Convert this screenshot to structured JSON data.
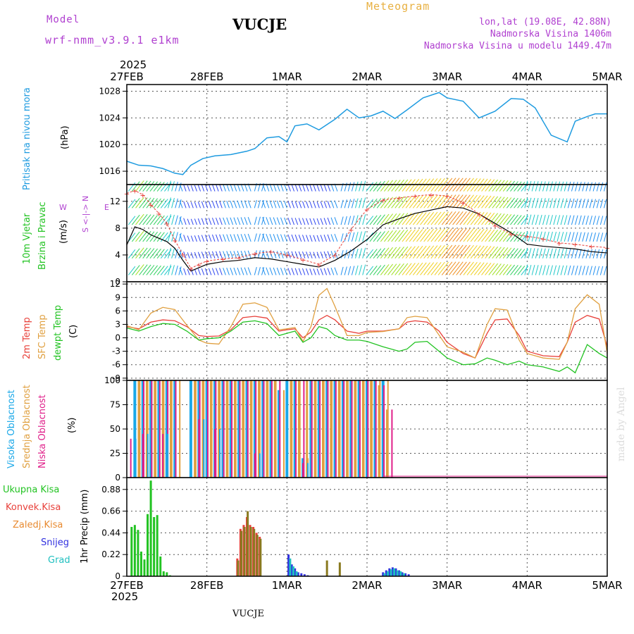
{
  "header": {
    "model_label": "Model",
    "model_name": "wrf-nmm_v3.9.1 e1km",
    "station": "VUCJE",
    "product": "Meteogram",
    "lonlat": "lon,lat (19.08E, 42.88N)",
    "altitude": "Nadmorska Visina 1406m",
    "model_altitude": "Nadmorska Visina u modelu 1449.47m",
    "footer_station": "VUCJE",
    "credit": "made by Angel"
  },
  "colors": {
    "pressure": "#1e9be0",
    "temp2m": "#e8403a",
    "sfc": "#e0a040",
    "dewpt": "#22c322",
    "high_cloud": "#1aa8e8",
    "mid_cloud": "#e0a040",
    "low_cloud": "#e0208a",
    "total_precip": "#22c322",
    "conv": "#e8403a",
    "frozen": "#e88a30",
    "snow": "#3030e0",
    "hail": "#20c0c0",
    "header_purple": "#b040d0",
    "header_orange": "#e8b040"
  },
  "time_axis": {
    "year": "2025",
    "labels": [
      "27FEB",
      "28FEB",
      "1MAR",
      "2MAR",
      "3MAR",
      "4MAR",
      "5MAR"
    ]
  },
  "panel_labels": {
    "pressure": {
      "name": "Pritisak na nivou mora",
      "unit": "(hPa)"
    },
    "wind": {
      "line1": "10m Vjetar",
      "line2": "Brzina i Pravac",
      "unit": "(m/s)",
      "compass_ns": "S <-|-> N",
      "compass_w": "W",
      "compass_e": "E"
    },
    "temp": {
      "t2m": "2m Temp",
      "sfc": "SFC Temp",
      "dew": "dewpt Temp",
      "unit": "(C)"
    },
    "cloud": {
      "high": "Visoka Oblacnost",
      "mid": "Srednja Oblacnost",
      "low": "Niska Oblacnost",
      "unit": "(%)"
    },
    "precip": {
      "total": "Ukupna Kisa",
      "conv": "Konvek.Kisa",
      "frozen": "Zaledj.Kisa",
      "snow": "Snijeg",
      "hail": "Grad",
      "axis": "1hr Precip (mm)"
    }
  },
  "chart_data": [
    {
      "type": "line",
      "name": "pressure",
      "x_unit": "days since 27FEB 00UTC",
      "ylim": [
        1014,
        1029
      ],
      "yticks": [
        "1016",
        "1020",
        "1024",
        "1028"
      ],
      "series": [
        {
          "name": "Pritisak na nivou mora",
          "x": [
            0,
            0.15,
            0.3,
            0.45,
            0.6,
            0.7,
            0.8,
            0.95,
            1.1,
            1.3,
            1.5,
            1.6,
            1.75,
            1.9,
            2.0,
            2.1,
            2.25,
            2.4,
            2.6,
            2.75,
            2.9,
            3.05,
            3.2,
            3.35,
            3.5,
            3.7,
            3.9,
            4.0,
            4.2,
            4.4,
            4.6,
            4.8,
            4.95,
            5.1,
            5.3,
            5.5,
            5.6,
            5.75,
            5.85,
            6.0
          ],
          "values": [
            1017.5,
            1016.9,
            1016.8,
            1016.4,
            1015.7,
            1015.5,
            1016.9,
            1017.9,
            1018.3,
            1018.5,
            1019.0,
            1019.4,
            1021.0,
            1021.2,
            1020.4,
            1022.8,
            1023.1,
            1022.2,
            1023.8,
            1025.3,
            1024.0,
            1024.3,
            1025.0,
            1023.9,
            1025.2,
            1027.0,
            1027.8,
            1027.0,
            1026.5,
            1024.0,
            1025.0,
            1026.9,
            1026.8,
            1025.5,
            1021.4,
            1020.4,
            1023.5,
            1024.2,
            1024.6,
            1024.6
          ]
        }
      ]
    },
    {
      "type": "line",
      "name": "wind",
      "x_unit": "days since 27FEB 00UTC",
      "ylim": [
        0,
        14.5
      ],
      "yticks": [
        "0",
        "4",
        "8",
        "12"
      ],
      "series": [
        {
          "name": "speed",
          "x": [
            0,
            0.1,
            0.2,
            0.3,
            0.4,
            0.5,
            0.6,
            0.7,
            0.8,
            0.9,
            1.0,
            1.2,
            1.4,
            1.6,
            1.8,
            2.0,
            2.2,
            2.4,
            2.6,
            2.8,
            3.0,
            3.2,
            3.4,
            3.6,
            3.8,
            4.0,
            4.2,
            4.4,
            4.6,
            4.8,
            5.0,
            5.2,
            5.4,
            5.6,
            5.8,
            6.0
          ],
          "values": [
            5.5,
            8.2,
            7.8,
            7.0,
            6.5,
            6.0,
            5.0,
            3.2,
            1.6,
            2.1,
            2.6,
            3.0,
            3.2,
            3.6,
            3.4,
            3.0,
            2.6,
            2.2,
            3.2,
            4.6,
            6.3,
            8.5,
            9.4,
            10.2,
            10.7,
            11.2,
            11.0,
            10.1,
            8.7,
            7.3,
            5.6,
            5.3,
            5.1,
            4.9,
            4.5,
            4.3
          ]
        },
        {
          "name": "gust",
          "x": [
            0,
            0.1,
            0.2,
            0.3,
            0.4,
            0.5,
            0.6,
            0.7,
            0.8,
            0.9,
            1.0,
            1.2,
            1.4,
            1.6,
            1.8,
            2.0,
            2.2,
            2.4,
            2.6,
            2.8,
            3.0,
            3.2,
            3.4,
            3.6,
            3.8,
            4.0,
            4.2,
            4.4,
            4.6,
            4.8,
            5.0,
            5.2,
            5.4,
            5.6,
            5.8,
            6.0
          ],
          "values": [
            13.2,
            13.6,
            13.0,
            11.5,
            10.2,
            8.7,
            6.2,
            4.1,
            2.0,
            2.6,
            3.1,
            3.4,
            3.6,
            4.2,
            4.5,
            4.0,
            3.3,
            2.6,
            4.0,
            7.8,
            10.8,
            12.2,
            12.5,
            12.8,
            13.0,
            12.8,
            11.8,
            10.1,
            8.4,
            7.1,
            6.8,
            6.4,
            5.8,
            5.6,
            5.3,
            5.1
          ]
        }
      ]
    },
    {
      "type": "line",
      "name": "temperature",
      "x_unit": "days since 27FEB 00UTC",
      "ylim": [
        -9.5,
        12.5
      ],
      "yticks": [
        "-9",
        "-6",
        "-3",
        "0",
        "3",
        "6",
        "9",
        "12"
      ],
      "series": [
        {
          "name": "2m Temp",
          "x": [
            0,
            0.15,
            0.3,
            0.45,
            0.6,
            0.75,
            0.9,
            1.0,
            1.15,
            1.3,
            1.45,
            1.6,
            1.75,
            1.9,
            2.0,
            2.1,
            2.2,
            2.3,
            2.4,
            2.5,
            2.6,
            2.75,
            2.9,
            3.0,
            3.2,
            3.4,
            3.5,
            3.6,
            3.75,
            3.9,
            4.0,
            4.2,
            4.35,
            4.5,
            4.6,
            4.75,
            4.9,
            5.0,
            5.2,
            5.4,
            5.5,
            5.6,
            5.75,
            5.9,
            6.0
          ],
          "values": [
            2.5,
            2.0,
            3.5,
            4.0,
            3.8,
            2.5,
            0.5,
            0.3,
            0.4,
            1.8,
            4.5,
            4.8,
            4.4,
            1.5,
            1.8,
            2.0,
            0.0,
            1.3,
            4.0,
            5.0,
            4.0,
            1.5,
            1.0,
            1.5,
            1.5,
            2.0,
            3.5,
            3.8,
            3.5,
            1.5,
            -1.0,
            -3.5,
            -4.5,
            1.0,
            4.0,
            4.2,
            0.5,
            -3.0,
            -4.0,
            -4.2,
            -1.0,
            3.5,
            5.0,
            4.2,
            -2.0
          ]
        },
        {
          "name": "SFC Temp",
          "x": [
            0,
            0.15,
            0.3,
            0.45,
            0.6,
            0.75,
            0.9,
            1.0,
            1.15,
            1.3,
            1.45,
            1.6,
            1.75,
            1.9,
            2.0,
            2.1,
            2.2,
            2.3,
            2.4,
            2.5,
            2.6,
            2.75,
            2.9,
            3.0,
            3.2,
            3.4,
            3.5,
            3.6,
            3.75,
            3.9,
            4.0,
            4.2,
            4.35,
            4.5,
            4.6,
            4.75,
            4.9,
            5.0,
            5.2,
            5.4,
            5.5,
            5.6,
            5.75,
            5.9,
            6.0
          ],
          "values": [
            2.7,
            1.8,
            5.5,
            6.8,
            6.3,
            2.8,
            -0.5,
            -1.2,
            -1.4,
            2.5,
            7.5,
            7.8,
            6.8,
            1.8,
            2.0,
            2.3,
            -0.8,
            2.5,
            9.5,
            11.0,
            7.0,
            0.5,
            0.5,
            1.2,
            1.4,
            2.0,
            4.5,
            4.8,
            4.5,
            0.6,
            -2.0,
            -3.2,
            -4.5,
            3.0,
            6.5,
            6.2,
            -0.5,
            -3.5,
            -4.5,
            -4.8,
            -1.0,
            6.5,
            9.6,
            7.5,
            -3.5
          ]
        },
        {
          "name": "dewpt Temp",
          "x": [
            0,
            0.15,
            0.3,
            0.45,
            0.6,
            0.75,
            0.9,
            1.0,
            1.15,
            1.3,
            1.45,
            1.6,
            1.75,
            1.9,
            2.0,
            2.1,
            2.2,
            2.3,
            2.4,
            2.5,
            2.6,
            2.75,
            2.9,
            3.0,
            3.2,
            3.4,
            3.5,
            3.6,
            3.75,
            3.9,
            4.0,
            4.2,
            4.35,
            4.5,
            4.6,
            4.75,
            4.9,
            5.0,
            5.2,
            5.4,
            5.5,
            5.6,
            5.75,
            5.9,
            6.0
          ],
          "values": [
            2.2,
            1.5,
            2.5,
            3.2,
            3.0,
            1.5,
            -0.5,
            -0.2,
            0.0,
            1.5,
            3.5,
            3.8,
            3.2,
            0.5,
            1.0,
            1.5,
            -1.0,
            0.0,
            2.5,
            2.0,
            0.5,
            -0.5,
            -0.5,
            -0.8,
            -2.0,
            -3.0,
            -2.5,
            -1.0,
            -0.8,
            -3.0,
            -4.5,
            -6.0,
            -5.8,
            -4.5,
            -5.0,
            -6.0,
            -5.2,
            -6.0,
            -6.5,
            -7.5,
            -6.5,
            -7.8,
            -1.5,
            -3.5,
            -4.5
          ]
        }
      ]
    },
    {
      "type": "bar",
      "name": "cloud",
      "x_unit": "days since 27FEB 00UTC",
      "ylim": [
        0,
        100
      ],
      "yticks": [
        "0",
        "25",
        "50",
        "75",
        "100"
      ],
      "series": [
        {
          "name": "Visoka Oblacnost",
          "x": [
            0.1,
            0.2,
            0.3,
            0.4,
            0.5,
            0.6,
            0.8,
            0.9,
            1.0,
            1.1,
            1.2,
            1.3,
            1.4,
            1.5,
            1.6,
            1.7,
            1.8,
            1.9,
            2.0,
            2.1,
            2.2,
            2.3,
            2.4,
            2.5,
            2.6,
            2.7,
            2.8,
            2.9,
            3.0,
            3.1,
            3.2,
            3.3,
            3.4,
            3.5,
            3.6,
            3.7,
            3.8,
            3.9,
            4.0,
            4.1,
            4.2,
            4.3,
            4.4,
            4.5,
            4.6,
            4.7,
            4.8,
            4.9,
            5.0,
            5.1,
            5.2,
            5.3,
            5.4,
            5.5,
            5.6,
            5.7,
            5.8,
            5.9,
            6.0
          ],
          "values": [
            100,
            100,
            100,
            100,
            100,
            100,
            100,
            100,
            100,
            100,
            100,
            100,
            100,
            100,
            100,
            100,
            100,
            90,
            100,
            100,
            20,
            100,
            100,
            100,
            100,
            100,
            100,
            100,
            100,
            100,
            100,
            0,
            0,
            0,
            0,
            0,
            0,
            0,
            0,
            0,
            0,
            0,
            0,
            0,
            0,
            0,
            0,
            0,
            0,
            0,
            0,
            0,
            0,
            0,
            0,
            0,
            0,
            0,
            0
          ]
        },
        {
          "name": "Srednja Oblacnost",
          "x": [
            0.15,
            0.25,
            0.35,
            0.45,
            0.55,
            0.85,
            0.95,
            1.05,
            1.15,
            1.25,
            1.35,
            1.45,
            1.55,
            1.65,
            1.75,
            1.85,
            2.05,
            2.15,
            2.25,
            2.35,
            2.45,
            2.55,
            2.65,
            2.75,
            2.85,
            2.95,
            3.05,
            3.15,
            3.25
          ],
          "values": [
            100,
            100,
            100,
            100,
            100,
            100,
            100,
            100,
            100,
            100,
            100,
            100,
            100,
            100,
            100,
            100,
            100,
            100,
            100,
            100,
            100,
            100,
            100,
            100,
            100,
            100,
            100,
            95,
            70
          ]
        },
        {
          "name": "Niska Oblacnost",
          "x": [
            0.05,
            0.2,
            0.45,
            0.9,
            1.1,
            1.6,
            2.2
          ],
          "values": [
            40,
            45,
            45,
            60,
            50,
            25,
            15
          ]
        }
      ]
    },
    {
      "type": "bar",
      "name": "precipitation",
      "x_unit": "days since 27FEB 00UTC",
      "ylim": [
        0,
        1.0
      ],
      "yticks": [
        "0",
        "0.22",
        "0.44",
        "0.66",
        "0.88"
      ],
      "series": [
        {
          "name": "Ukupna Kisa",
          "x": [
            0.06,
            0.1,
            0.14,
            0.18,
            0.22,
            0.26,
            0.3,
            0.34,
            0.38,
            0.42,
            0.46,
            0.5,
            0.54
          ],
          "values": [
            0.5,
            0.52,
            0.47,
            0.25,
            0.17,
            0.63,
            0.97,
            0.6,
            0.62,
            0.2,
            0.05,
            0.04,
            0.01
          ]
        },
        {
          "name": "Konvek.Kisa",
          "x": [
            1.38,
            1.42,
            1.46,
            1.5,
            1.54,
            1.58,
            1.62,
            1.66
          ],
          "values": [
            0.18,
            0.48,
            0.52,
            0.6,
            0.52,
            0.5,
            0.44,
            0.4
          ]
        },
        {
          "name": "Zaledj.Kisa",
          "x": [
            1.39,
            1.43,
            1.47,
            1.51,
            1.55,
            1.59,
            1.63,
            1.67,
            2.5,
            2.66
          ],
          "values": [
            0.16,
            0.46,
            0.5,
            0.66,
            0.5,
            0.48,
            0.42,
            0.38,
            0.16,
            0.14
          ]
        },
        {
          "name": "Snijeg",
          "x": [
            2.02,
            2.06,
            2.1,
            2.14,
            2.18,
            2.22,
            2.26,
            3.2,
            3.24,
            3.28,
            3.32,
            3.36,
            3.4,
            3.44,
            3.48,
            3.52
          ],
          "values": [
            0.22,
            0.12,
            0.08,
            0.04,
            0.03,
            0.02,
            0.01,
            0.04,
            0.06,
            0.08,
            0.09,
            0.08,
            0.06,
            0.04,
            0.03,
            0.02
          ]
        },
        {
          "name": "Grad",
          "x": [
            2.04,
            2.08,
            2.12,
            3.22,
            3.26,
            3.3,
            3.34,
            3.38,
            3.42,
            3.46
          ],
          "values": [
            0.18,
            0.1,
            0.05,
            0.03,
            0.05,
            0.07,
            0.08,
            0.06,
            0.05,
            0.03
          ]
        }
      ]
    }
  ]
}
